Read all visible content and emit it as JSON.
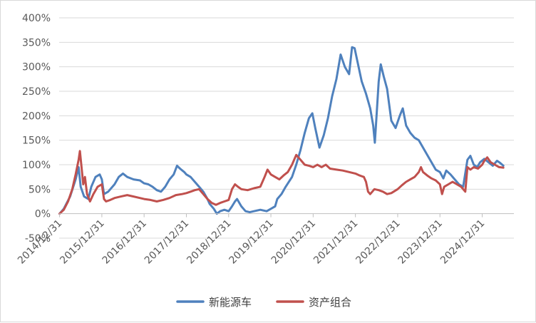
{
  "chart_data": {
    "type": "line",
    "title": "",
    "xlabel": "",
    "ylabel": "",
    "ylim": [
      -50,
      400
    ],
    "ytick_step": 50,
    "y_tick_labels": [
      "-50%",
      "0%",
      "50%",
      "100%",
      "150%",
      "200%",
      "250%",
      "300%",
      "350%",
      "400%"
    ],
    "x_range": [
      2014.99,
      2025.75
    ],
    "x_tick_positions": [
      2015,
      2016,
      2017,
      2018,
      2019,
      2020,
      2021,
      2022,
      2023,
      2024,
      2025
    ],
    "x_tick_labels": [
      "2014/12/31",
      "2015/12/31",
      "2016/12/31",
      "2017/12/31",
      "2018/12/31",
      "2019/12/31",
      "2020/12/31",
      "2021/12/31",
      "2022/12/31",
      "2023/12/31",
      "2024/12/31"
    ],
    "grid": "horizontal",
    "legend_position": "bottom",
    "series": [
      {
        "name": "新能源车",
        "color": "#4f81bd",
        "points": [
          [
            2015.0,
            0
          ],
          [
            2015.1,
            10
          ],
          [
            2015.25,
            35
          ],
          [
            2015.38,
            70
          ],
          [
            2015.45,
            95
          ],
          [
            2015.5,
            55
          ],
          [
            2015.58,
            35
          ],
          [
            2015.68,
            30
          ],
          [
            2015.75,
            55
          ],
          [
            2015.85,
            75
          ],
          [
            2015.95,
            80
          ],
          [
            2016.0,
            70
          ],
          [
            2016.05,
            40
          ],
          [
            2016.15,
            45
          ],
          [
            2016.3,
            60
          ],
          [
            2016.4,
            75
          ],
          [
            2016.5,
            82
          ],
          [
            2016.6,
            75
          ],
          [
            2016.75,
            70
          ],
          [
            2016.9,
            68
          ],
          [
            2017.0,
            62
          ],
          [
            2017.1,
            60
          ],
          [
            2017.2,
            55
          ],
          [
            2017.3,
            48
          ],
          [
            2017.4,
            45
          ],
          [
            2017.5,
            55
          ],
          [
            2017.6,
            70
          ],
          [
            2017.7,
            80
          ],
          [
            2017.78,
            98
          ],
          [
            2017.85,
            92
          ],
          [
            2017.95,
            85
          ],
          [
            2018.0,
            80
          ],
          [
            2018.1,
            75
          ],
          [
            2018.2,
            65
          ],
          [
            2018.3,
            55
          ],
          [
            2018.4,
            45
          ],
          [
            2018.5,
            30
          ],
          [
            2018.55,
            20
          ],
          [
            2018.65,
            10
          ],
          [
            2018.72,
            0
          ],
          [
            2018.8,
            5
          ],
          [
            2018.9,
            8
          ],
          [
            2019.0,
            5
          ],
          [
            2019.08,
            15
          ],
          [
            2019.15,
            25
          ],
          [
            2019.2,
            30
          ],
          [
            2019.3,
            15
          ],
          [
            2019.4,
            5
          ],
          [
            2019.5,
            3
          ],
          [
            2019.6,
            5
          ],
          [
            2019.75,
            8
          ],
          [
            2019.9,
            5
          ],
          [
            2020.0,
            10
          ],
          [
            2020.1,
            15
          ],
          [
            2020.15,
            30
          ],
          [
            2020.25,
            40
          ],
          [
            2020.35,
            55
          ],
          [
            2020.5,
            75
          ],
          [
            2020.6,
            100
          ],
          [
            2020.7,
            130
          ],
          [
            2020.8,
            165
          ],
          [
            2020.9,
            195
          ],
          [
            2020.98,
            205
          ],
          [
            2021.05,
            175
          ],
          [
            2021.15,
            135
          ],
          [
            2021.25,
            160
          ],
          [
            2021.35,
            195
          ],
          [
            2021.45,
            240
          ],
          [
            2021.55,
            275
          ],
          [
            2021.65,
            325
          ],
          [
            2021.75,
            300
          ],
          [
            2021.85,
            285
          ],
          [
            2021.92,
            340
          ],
          [
            2021.98,
            338
          ],
          [
            2022.05,
            310
          ],
          [
            2022.15,
            270
          ],
          [
            2022.25,
            245
          ],
          [
            2022.35,
            215
          ],
          [
            2022.42,
            180
          ],
          [
            2022.46,
            145
          ],
          [
            2022.5,
            200
          ],
          [
            2022.55,
            270
          ],
          [
            2022.6,
            305
          ],
          [
            2022.67,
            280
          ],
          [
            2022.75,
            255
          ],
          [
            2022.85,
            190
          ],
          [
            2022.95,
            175
          ],
          [
            2023.05,
            200
          ],
          [
            2023.12,
            215
          ],
          [
            2023.2,
            180
          ],
          [
            2023.3,
            165
          ],
          [
            2023.4,
            155
          ],
          [
            2023.5,
            150
          ],
          [
            2023.6,
            135
          ],
          [
            2023.7,
            120
          ],
          [
            2023.8,
            105
          ],
          [
            2023.9,
            90
          ],
          [
            2024.0,
            85
          ],
          [
            2024.08,
            72
          ],
          [
            2024.15,
            88
          ],
          [
            2024.25,
            80
          ],
          [
            2024.35,
            70
          ],
          [
            2024.45,
            60
          ],
          [
            2024.55,
            55
          ],
          [
            2024.65,
            110
          ],
          [
            2024.72,
            118
          ],
          [
            2024.8,
            100
          ],
          [
            2024.88,
            95
          ],
          [
            2024.95,
            105
          ],
          [
            2025.05,
            112
          ],
          [
            2025.15,
            105
          ],
          [
            2025.25,
            98
          ],
          [
            2025.35,
            108
          ],
          [
            2025.42,
            104
          ],
          [
            2025.5,
            98
          ]
        ]
      },
      {
        "name": "资产组合",
        "color": "#c0504d",
        "points": [
          [
            2015.0,
            0
          ],
          [
            2015.1,
            8
          ],
          [
            2015.2,
            25
          ],
          [
            2015.3,
            50
          ],
          [
            2015.38,
            80
          ],
          [
            2015.45,
            110
          ],
          [
            2015.48,
            128
          ],
          [
            2015.52,
            95
          ],
          [
            2015.56,
            60
          ],
          [
            2015.6,
            75
          ],
          [
            2015.65,
            40
          ],
          [
            2015.72,
            25
          ],
          [
            2015.8,
            40
          ],
          [
            2015.9,
            55
          ],
          [
            2016.0,
            60
          ],
          [
            2016.05,
            30
          ],
          [
            2016.1,
            25
          ],
          [
            2016.2,
            28
          ],
          [
            2016.3,
            32
          ],
          [
            2016.45,
            35
          ],
          [
            2016.6,
            38
          ],
          [
            2016.75,
            35
          ],
          [
            2016.9,
            32
          ],
          [
            2017.0,
            30
          ],
          [
            2017.15,
            28
          ],
          [
            2017.3,
            25
          ],
          [
            2017.45,
            28
          ],
          [
            2017.6,
            32
          ],
          [
            2017.75,
            38
          ],
          [
            2017.9,
            40
          ],
          [
            2018.0,
            42
          ],
          [
            2018.1,
            45
          ],
          [
            2018.2,
            48
          ],
          [
            2018.3,
            50
          ],
          [
            2018.4,
            40
          ],
          [
            2018.5,
            30
          ],
          [
            2018.6,
            22
          ],
          [
            2018.7,
            18
          ],
          [
            2018.8,
            22
          ],
          [
            2018.9,
            25
          ],
          [
            2019.0,
            28
          ],
          [
            2019.08,
            50
          ],
          [
            2019.15,
            60
          ],
          [
            2019.22,
            55
          ],
          [
            2019.3,
            50
          ],
          [
            2019.45,
            48
          ],
          [
            2019.6,
            52
          ],
          [
            2019.75,
            55
          ],
          [
            2019.85,
            75
          ],
          [
            2019.92,
            90
          ],
          [
            2020.0,
            80
          ],
          [
            2020.1,
            75
          ],
          [
            2020.2,
            70
          ],
          [
            2020.3,
            78
          ],
          [
            2020.4,
            85
          ],
          [
            2020.5,
            100
          ],
          [
            2020.6,
            120
          ],
          [
            2020.7,
            110
          ],
          [
            2020.8,
            100
          ],
          [
            2020.9,
            98
          ],
          [
            2021.0,
            95
          ],
          [
            2021.1,
            100
          ],
          [
            2021.2,
            95
          ],
          [
            2021.3,
            100
          ],
          [
            2021.4,
            92
          ],
          [
            2021.55,
            90
          ],
          [
            2021.7,
            88
          ],
          [
            2021.85,
            85
          ],
          [
            2022.0,
            82
          ],
          [
            2022.1,
            78
          ],
          [
            2022.2,
            75
          ],
          [
            2022.25,
            65
          ],
          [
            2022.3,
            45
          ],
          [
            2022.35,
            40
          ],
          [
            2022.45,
            50
          ],
          [
            2022.55,
            48
          ],
          [
            2022.65,
            45
          ],
          [
            2022.75,
            40
          ],
          [
            2022.85,
            42
          ],
          [
            2023.0,
            50
          ],
          [
            2023.1,
            58
          ],
          [
            2023.2,
            65
          ],
          [
            2023.3,
            70
          ],
          [
            2023.4,
            75
          ],
          [
            2023.5,
            85
          ],
          [
            2023.55,
            95
          ],
          [
            2023.6,
            85
          ],
          [
            2023.7,
            78
          ],
          [
            2023.8,
            72
          ],
          [
            2023.9,
            68
          ],
          [
            2024.0,
            60
          ],
          [
            2024.05,
            40
          ],
          [
            2024.1,
            55
          ],
          [
            2024.2,
            60
          ],
          [
            2024.3,
            65
          ],
          [
            2024.4,
            60
          ],
          [
            2024.5,
            55
          ],
          [
            2024.6,
            45
          ],
          [
            2024.65,
            95
          ],
          [
            2024.72,
            90
          ],
          [
            2024.8,
            95
          ],
          [
            2024.9,
            92
          ],
          [
            2025.0,
            100
          ],
          [
            2025.05,
            108
          ],
          [
            2025.12,
            115
          ],
          [
            2025.2,
            105
          ],
          [
            2025.3,
            100
          ],
          [
            2025.4,
            95
          ],
          [
            2025.5,
            94
          ]
        ]
      }
    ]
  }
}
